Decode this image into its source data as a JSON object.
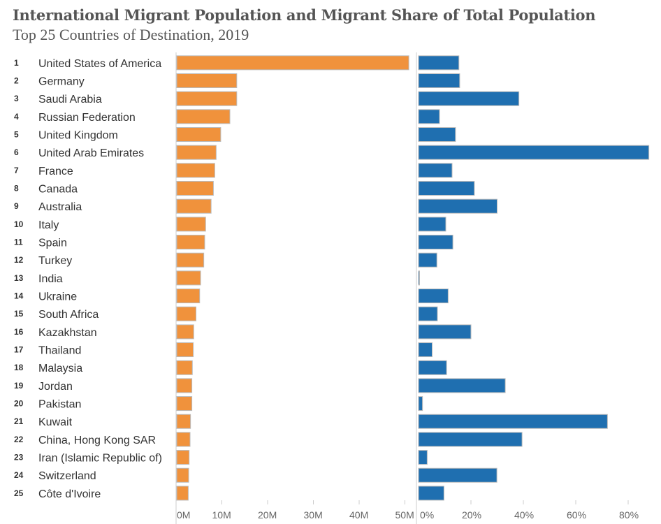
{
  "chart_data": [
    {
      "type": "bar",
      "orientation": "horizontal",
      "title": "International Migrant Population and Migrant Share of Total Population",
      "subtitle": "Top 25 Countries of Destination, 2019",
      "ranks": [
        1,
        2,
        3,
        4,
        5,
        6,
        7,
        8,
        9,
        10,
        11,
        12,
        13,
        14,
        15,
        16,
        17,
        18,
        19,
        20,
        21,
        22,
        23,
        24,
        25
      ],
      "categories": [
        "United States of America",
        "Germany",
        "Saudi Arabia",
        "Russian Federation",
        "United Kingdom",
        "United Arab Emirates",
        "France",
        "Canada",
        "Australia",
        "Italy",
        "Spain",
        "Turkey",
        "India",
        "Ukraine",
        "South Africa",
        "Kazakhstan",
        "Thailand",
        "Malaysia",
        "Jordan",
        "Pakistan",
        "Kuwait",
        "China, Hong Kong SAR",
        "Iran (Islamic Republic of)",
        "Switzerland",
        "Côte d'Ivoire"
      ],
      "values": [
        50.7,
        13.1,
        13.1,
        11.6,
        9.6,
        8.6,
        8.3,
        8.0,
        7.5,
        6.3,
        6.1,
        5.9,
        5.2,
        5.0,
        4.2,
        3.7,
        3.6,
        3.4,
        3.3,
        3.3,
        3.0,
        2.9,
        2.7,
        2.6,
        2.5
      ],
      "unit": "M",
      "xlim": [
        0,
        55
      ],
      "xticks": [
        "0M",
        "10M",
        "20M",
        "30M",
        "40M",
        "50M"
      ],
      "xtick_values": [
        0,
        10,
        20,
        30,
        40,
        50
      ],
      "color": "#F0923C",
      "grid": false
    },
    {
      "type": "bar",
      "orientation": "horizontal",
      "categories_shared": true,
      "values": [
        15.4,
        15.7,
        38.3,
        8.0,
        14.1,
        87.9,
        12.8,
        21.3,
        30.0,
        10.4,
        13.1,
        7.0,
        0.4,
        11.3,
        7.2,
        20.0,
        5.2,
        10.7,
        33.1,
        1.5,
        72.1,
        39.5,
        3.3,
        29.9,
        9.7
      ],
      "unit": "%",
      "xlim": [
        0,
        92
      ],
      "xticks": [
        "0%",
        "20%",
        "40%",
        "60%",
        "80%"
      ],
      "xtick_values": [
        0,
        20,
        40,
        60,
        80
      ],
      "color": "#1F6FB0",
      "grid": false
    }
  ]
}
